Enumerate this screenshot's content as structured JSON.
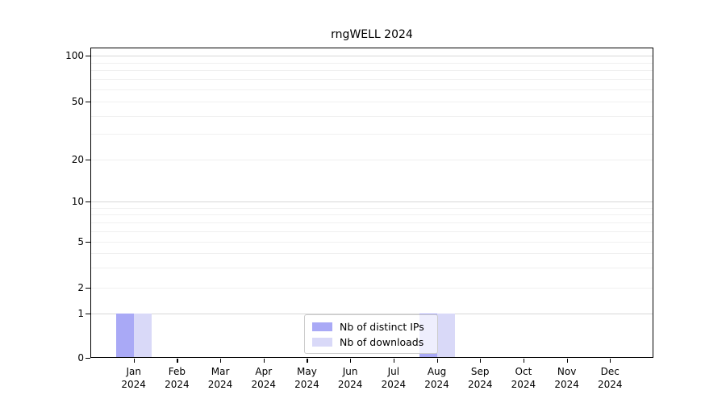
{
  "chart_data": {
    "type": "bar",
    "title": "rngWELL 2024",
    "x": {
      "categories": [
        "Jan",
        "Feb",
        "Mar",
        "Apr",
        "May",
        "Jun",
        "Jul",
        "Aug",
        "Sep",
        "Oct",
        "Nov",
        "Dec"
      ],
      "year": "2024"
    },
    "series": [
      {
        "name": "Nb of distinct IPs",
        "color": "#a9a9f6",
        "values": [
          1,
          0,
          0,
          0,
          0,
          0,
          0,
          1,
          0,
          0,
          0,
          0
        ]
      },
      {
        "name": "Nb of downloads",
        "color": "#d9d9f8",
        "values": [
          1,
          0,
          0,
          0,
          0,
          0,
          0,
          1,
          0,
          0,
          0,
          0
        ]
      }
    ],
    "y": {
      "ticks": [
        0,
        1,
        2,
        5,
        10,
        20,
        50,
        100
      ],
      "scale": "log-above-1-linear-below",
      "range": [
        0,
        100
      ]
    },
    "legend": {
      "position": "lower-center"
    },
    "grid": {
      "on": true,
      "major_color": "#d7d7d7",
      "minor_color": "#f0f0f0"
    },
    "colors": {
      "background": "#ffffff",
      "spine": "#000000",
      "text": "#000000",
      "legend_border": "#cccccc"
    }
  }
}
